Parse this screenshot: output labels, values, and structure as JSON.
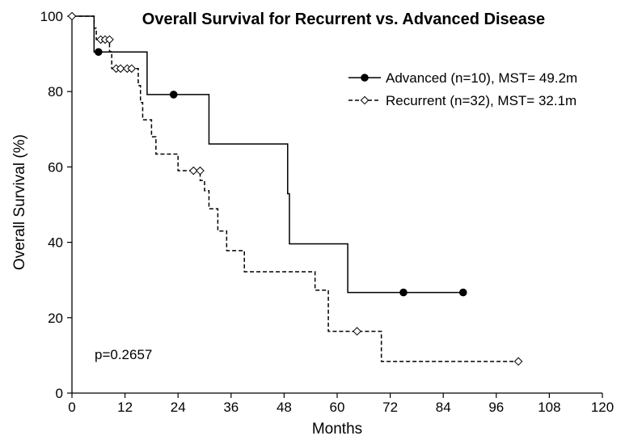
{
  "chart_data": {
    "type": "line",
    "chart_kind": "kaplan-meier step",
    "title": "Overall Survival for Recurrent vs. Advanced Disease",
    "xlabel": "Months",
    "ylabel": "Overall Survival (%)",
    "xlim": [
      0,
      120
    ],
    "ylim": [
      0,
      100
    ],
    "x_ticks": [
      0,
      12,
      24,
      36,
      48,
      60,
      72,
      84,
      96,
      108,
      120
    ],
    "y_ticks": [
      0,
      20,
      40,
      60,
      80,
      100
    ],
    "grid": false,
    "legend_position": "top-right",
    "annotation": "p=0.2657",
    "series": [
      {
        "name": "Advanced (n=10), MST= 49.2m",
        "line_style": "solid",
        "marker": "filled-circle",
        "color": "#000000",
        "steps": [
          [
            0,
            100
          ],
          [
            5,
            90.5
          ],
          [
            17,
            79.2
          ],
          [
            31,
            66.1
          ],
          [
            48.8,
            52.9
          ],
          [
            49.2,
            39.6
          ],
          [
            62.4,
            26.7
          ],
          [
            88.5,
            26.7
          ]
        ],
        "censored": [
          [
            6,
            90.5
          ],
          [
            23,
            79.2
          ],
          [
            75,
            26.7
          ],
          [
            88.5,
            26.7
          ]
        ]
      },
      {
        "name": "Recurrent (n=32), MST= 32.1m",
        "line_style": "dashed",
        "marker": "open-diamond",
        "color": "#000000",
        "steps": [
          [
            0,
            100
          ],
          [
            5,
            96.8
          ],
          [
            5.5,
            93.8
          ],
          [
            8.5,
            90.6
          ],
          [
            9,
            86.1
          ],
          [
            15,
            81.6
          ],
          [
            15.5,
            77.1
          ],
          [
            16,
            72.5
          ],
          [
            18,
            68
          ],
          [
            19,
            63.4
          ],
          [
            24,
            59
          ],
          [
            29,
            56.4
          ],
          [
            30,
            53.7
          ],
          [
            31,
            48.9
          ],
          [
            33,
            43
          ],
          [
            35,
            37.8
          ],
          [
            39,
            32.2
          ],
          [
            55,
            27.3
          ],
          [
            58,
            16.4
          ],
          [
            70,
            8.4
          ],
          [
            101,
            8.4
          ]
        ],
        "censored": [
          [
            0,
            100
          ],
          [
            6.5,
            93.8
          ],
          [
            7.5,
            93.8
          ],
          [
            8.5,
            93.8
          ],
          [
            10,
            86.1
          ],
          [
            11,
            86.1
          ],
          [
            12.5,
            86.1
          ],
          [
            13.5,
            86.1
          ],
          [
            27.5,
            59
          ],
          [
            29,
            59
          ],
          [
            64.5,
            16.4
          ],
          [
            101,
            8.4
          ]
        ]
      }
    ]
  }
}
